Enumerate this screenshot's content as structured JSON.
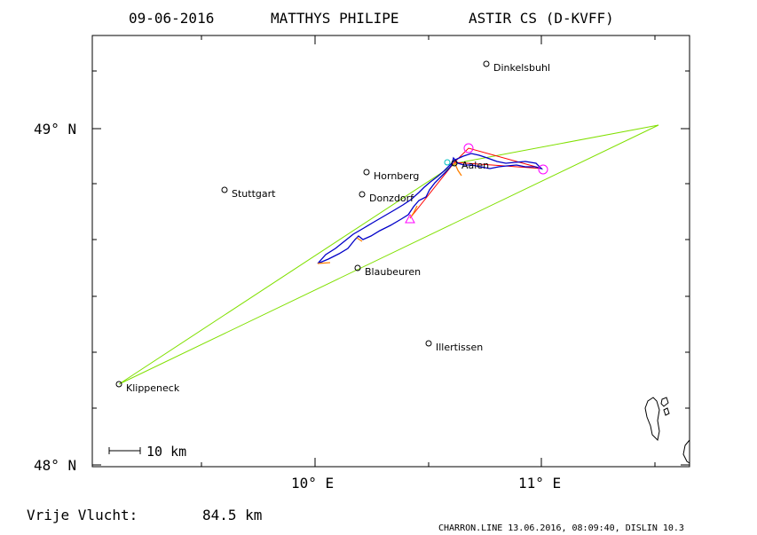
{
  "header": {
    "date": "09-06-2016",
    "pilot": "MATTHYS PHILIPE",
    "glider": "ASTIR CS (D-KVFF)"
  },
  "axes": {
    "y_labels": [
      "49° N",
      "48° N"
    ],
    "x_labels": [
      "10° E",
      "11° E"
    ]
  },
  "scale_bar": "10 km",
  "places": [
    "Dinkelsbuhl",
    "Hornberg",
    "Stuttgart",
    "Donzdorf",
    "Aalen",
    "Blaubeuren",
    "Illertissen",
    "Klippeneck"
  ],
  "footer": {
    "distance_label": "Vrije Vlucht:",
    "distance_value": "84.5 km",
    "credit": "CHARRON.LINE 13.06.2016, 08:09:40, DISLIN 10.3"
  },
  "colors": {
    "frame": "#000000",
    "triangle": "#80e000",
    "track": "#0000c8",
    "track_alt": "#ff8000",
    "task_leg": "#ff0000",
    "turnpoint": "#ff00ff",
    "start": "#00c0c0"
  }
}
